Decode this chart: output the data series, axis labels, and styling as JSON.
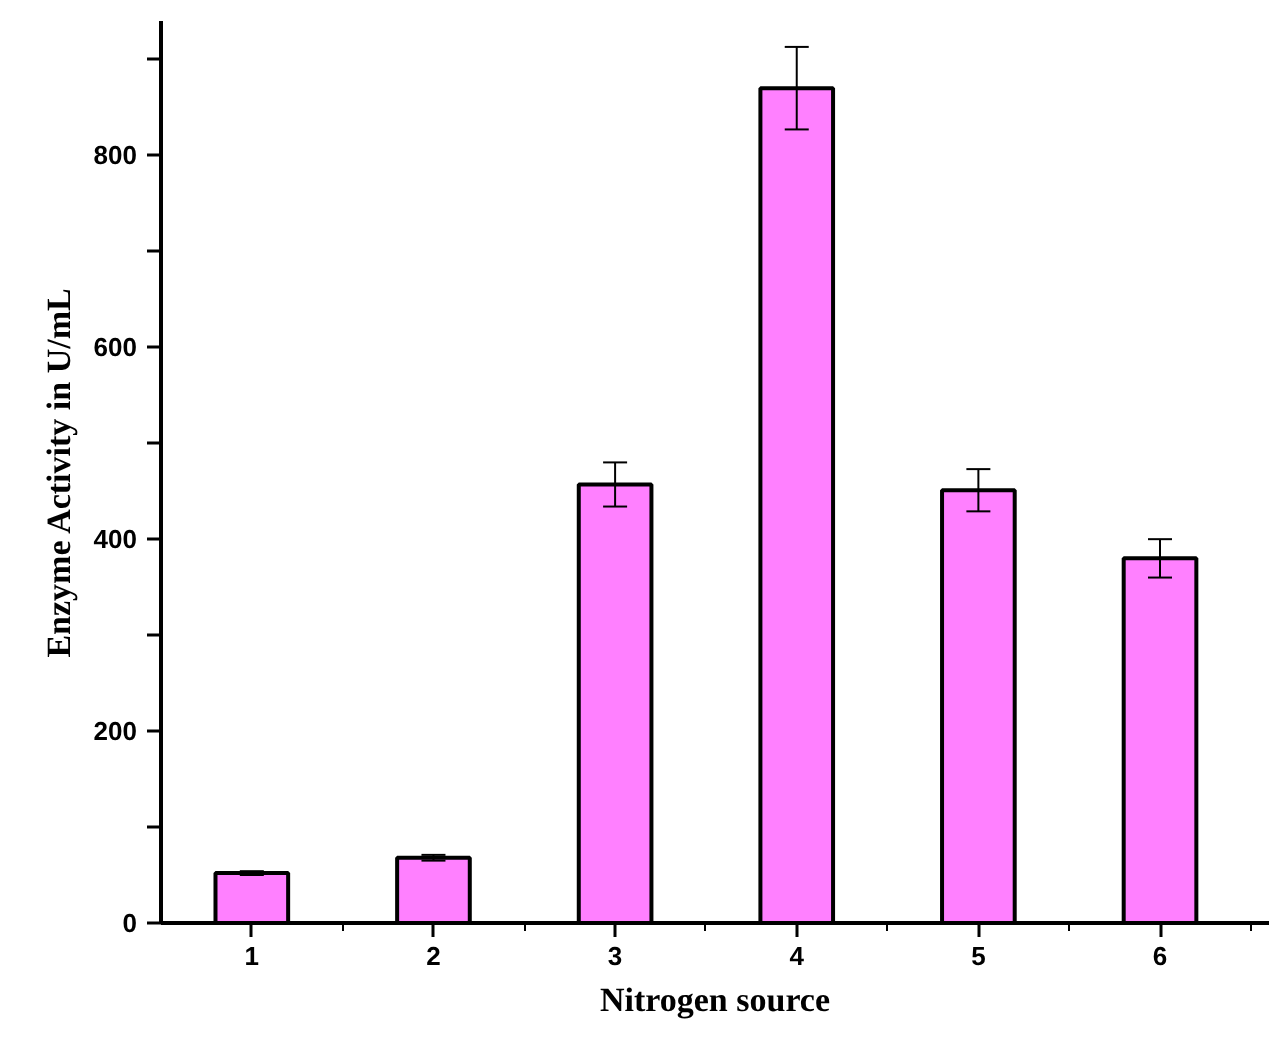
{
  "chart_data": {
    "type": "bar",
    "xlabel": "Nitrogen source",
    "ylabel": "Enzyme Activity in U/mL",
    "categories": [
      "1",
      "2",
      "3",
      "4",
      "5",
      "6"
    ],
    "values": [
      52,
      68,
      457,
      870,
      451,
      380
    ],
    "errors": [
      2,
      3,
      23,
      43,
      22,
      20
    ],
    "color": "#ff80ff",
    "ylim": [
      0,
      940
    ],
    "yticks": [
      0,
      {
        "value": 100,
        "label": null
      },
      200,
      {
        "value": 300,
        "label": null
      },
      400,
      {
        "value": 500,
        "label": null
      },
      600,
      {
        "value": 700,
        "label": null
      },
      800,
      {
        "value": 900,
        "label": null
      }
    ],
    "grid": false
  }
}
